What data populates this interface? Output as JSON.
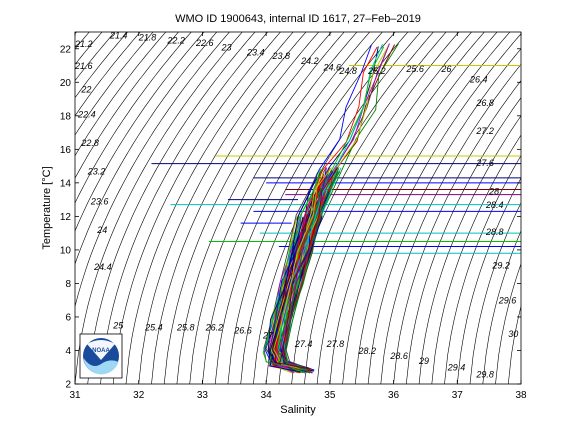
{
  "chart_data": {
    "type": "line",
    "title": "WMO ID 1900643, internal ID 1617, 27–Feb–2019",
    "xlabel": "Salinity",
    "ylabel": "Temperature [°C]",
    "xlim": [
      31,
      38
    ],
    "ylim": [
      2,
      23
    ],
    "xticks": [
      "31",
      "32",
      "33",
      "34",
      "35",
      "36",
      "37",
      "38"
    ],
    "yticks": [
      "2",
      "4",
      "6",
      "8",
      "10",
      "12",
      "14",
      "16",
      "18",
      "20",
      "22"
    ],
    "grid": false,
    "logo_text": "NOAA",
    "density_labels": [
      {
        "text": "21.4",
        "s": 31.55,
        "t": 22.6
      },
      {
        "text": "21.8",
        "s": 32.0,
        "t": 22.5
      },
      {
        "text": "22.2",
        "s": 32.45,
        "t": 22.3
      },
      {
        "text": "22.6",
        "s": 32.9,
        "t": 22.15
      },
      {
        "text": "23",
        "s": 33.3,
        "t": 21.9
      },
      {
        "text": "23.4",
        "s": 33.7,
        "t": 21.6
      },
      {
        "text": "23.8",
        "s": 34.1,
        "t": 21.4
      },
      {
        "text": "24.2",
        "s": 34.55,
        "t": 21.1
      },
      {
        "text": "24.6",
        "s": 34.9,
        "t": 20.7
      },
      {
        "text": "24.8",
        "s": 35.15,
        "t": 20.5
      },
      {
        "text": "25.2",
        "s": 35.6,
        "t": 20.5
      },
      {
        "text": "25.6",
        "s": 36.2,
        "t": 20.6
      },
      {
        "text": "26",
        "s": 36.75,
        "t": 20.6
      },
      {
        "text": "26.4",
        "s": 37.2,
        "t": 20.0
      },
      {
        "text": "26.8",
        "s": 37.3,
        "t": 18.6
      },
      {
        "text": "27.2",
        "s": 37.3,
        "t": 16.9
      },
      {
        "text": "27.6",
        "s": 37.3,
        "t": 15.0
      },
      {
        "text": "28",
        "s": 37.5,
        "t": 13.3
      },
      {
        "text": "28.4",
        "s": 37.45,
        "t": 12.5
      },
      {
        "text": "28.8",
        "s": 37.45,
        "t": 10.9
      },
      {
        "text": "29.2",
        "s": 37.55,
        "t": 8.9
      },
      {
        "text": "29.6",
        "s": 37.65,
        "t": 6.8
      },
      {
        "text": "30",
        "s": 37.8,
        "t": 4.8
      },
      {
        "text": "21.2",
        "s": 31.0,
        "t": 22.1
      },
      {
        "text": "21.6",
        "s": 31.0,
        "t": 20.8
      },
      {
        "text": "22",
        "s": 31.1,
        "t": 19.4
      },
      {
        "text": "22.4",
        "s": 31.05,
        "t": 17.9
      },
      {
        "text": "22.8",
        "s": 31.1,
        "t": 16.2
      },
      {
        "text": "23.2",
        "s": 31.2,
        "t": 14.5
      },
      {
        "text": "23.6",
        "s": 31.25,
        "t": 12.7
      },
      {
        "text": "24",
        "s": 31.35,
        "t": 11.0
      },
      {
        "text": "24.4",
        "s": 31.3,
        "t": 8.8
      },
      {
        "text": "25",
        "s": 31.6,
        "t": 5.3
      },
      {
        "text": "25.4",
        "s": 32.1,
        "t": 5.2
      },
      {
        "text": "25.8",
        "s": 32.6,
        "t": 5.2
      },
      {
        "text": "26.2",
        "s": 33.05,
        "t": 5.2
      },
      {
        "text": "26.6",
        "s": 33.5,
        "t": 5.0
      },
      {
        "text": "27",
        "s": 33.95,
        "t": 4.7
      },
      {
        "text": "27.4",
        "s": 34.45,
        "t": 4.2
      },
      {
        "text": "27.8",
        "s": 34.95,
        "t": 4.2
      },
      {
        "text": "28.2",
        "s": 35.45,
        "t": 3.8
      },
      {
        "text": "28.6",
        "s": 35.95,
        "t": 3.5
      },
      {
        "text": "29",
        "s": 36.4,
        "t": 3.2
      },
      {
        "text": "29.4",
        "s": 36.85,
        "t": 2.8
      },
      {
        "text": "29.8",
        "s": 37.3,
        "t": 2.4
      }
    ],
    "horizontal_lines": [
      {
        "t": 21.0,
        "s0": 35.3,
        "s1": 38.0,
        "color": "#c8c800"
      },
      {
        "t": 15.6,
        "s0": 33.2,
        "s1": 38.0,
        "color": "#c8c800"
      },
      {
        "t": 15.15,
        "s0": 32.2,
        "s1": 38.0,
        "color": "#000080"
      },
      {
        "t": 14.3,
        "s0": 33.8,
        "s1": 38.0,
        "color": "#000080"
      },
      {
        "t": 14.0,
        "s0": 34.0,
        "s1": 38.0,
        "color": "#0000ff"
      },
      {
        "t": 13.6,
        "s0": 34.3,
        "s1": 38.0,
        "color": "#800000"
      },
      {
        "t": 13.3,
        "s0": 34.3,
        "s1": 38.0,
        "color": "#800080"
      },
      {
        "t": 12.7,
        "s0": 32.5,
        "s1": 38.0,
        "color": "#00bfbf"
      },
      {
        "t": 12.3,
        "s0": 33.8,
        "s1": 38.0,
        "color": "#0000ff"
      },
      {
        "t": 11.0,
        "s0": 33.9,
        "s1": 38.0,
        "color": "#00bfbf"
      },
      {
        "t": 10.5,
        "s0": 33.1,
        "s1": 38.0,
        "color": "#00bf00"
      },
      {
        "t": 10.2,
        "s0": 34.2,
        "s1": 38.0,
        "color": "#0000ff"
      },
      {
        "t": 9.8,
        "s0": 34.5,
        "s1": 38.0,
        "color": "#00bfbf"
      },
      {
        "t": 11.6,
        "s0": 33.6,
        "s1": 34.4,
        "color": "#0000ff"
      },
      {
        "t": 13.0,
        "s0": 33.4,
        "s1": 34.5,
        "color": "#000080"
      }
    ],
    "profile_colors": [
      "#0000ff",
      "#00bf00",
      "#ff0000",
      "#00bfbf",
      "#bf00bf",
      "#bfbf00",
      "#404040",
      "#000080",
      "#008000",
      "#800000"
    ]
  }
}
